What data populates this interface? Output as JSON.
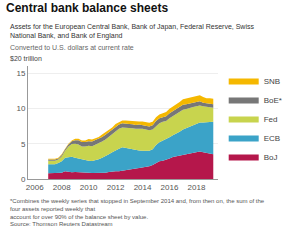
{
  "chart_data": {
    "type": "area",
    "stacked": true,
    "title": "Central bank balance sheets",
    "subtitle": "Assets for the European Central Bank, Bank of Japan, Federal Reserve, Swiss National Bank, and Bank of England",
    "annotations": [
      "Converted to U.S. dollars at current rate",
      "$20 trillion"
    ],
    "footnote": [
      "*Combines the weekly series that stopped in September 2014 and, from then on, the sum of the four assets reported weekly that",
      "account for over 90% of the balance sheet by value.",
      "Source: Thomson Reuters Datastream"
    ],
    "x": [
      2007.0,
      2007.25,
      2007.5,
      2007.75,
      2008.0,
      2008.25,
      2008.5,
      2008.75,
      2009.0,
      2009.25,
      2009.5,
      2009.75,
      2010.0,
      2010.25,
      2010.5,
      2010.75,
      2011.0,
      2011.25,
      2011.5,
      2011.75,
      2012.0,
      2012.25,
      2012.5,
      2012.75,
      2013.0,
      2013.25,
      2013.5,
      2013.75,
      2014.0,
      2014.25,
      2014.5,
      2014.75,
      2015.0,
      2015.25,
      2015.5,
      2015.75,
      2016.0,
      2016.25,
      2016.5,
      2016.75,
      2017.0,
      2017.25,
      2017.5,
      2017.75,
      2018.0,
      2018.25,
      2018.5,
      2018.75,
      2019.0,
      2019.25
    ],
    "series": [
      {
        "name": "BoJ",
        "color": "#b5174b",
        "values": [
          0.8,
          0.8,
          0.8,
          0.85,
          0.9,
          1.1,
          1.0,
          0.95,
          1.0,
          1.0,
          0.9,
          0.9,
          0.9,
          0.85,
          0.85,
          0.9,
          0.9,
          0.9,
          1.0,
          1.1,
          1.1,
          1.1,
          1.2,
          1.3,
          1.35,
          1.4,
          1.5,
          1.55,
          1.6,
          1.7,
          1.8,
          2.0,
          2.3,
          2.5,
          2.6,
          2.7,
          2.9,
          3.1,
          3.2,
          3.4,
          3.5,
          3.6,
          3.7,
          3.8,
          3.8,
          3.9,
          3.8,
          3.7,
          3.6,
          3.5
        ]
      },
      {
        "name": "ECB",
        "color": "#3ba3c8",
        "values": [
          1.3,
          1.3,
          1.3,
          1.4,
          1.6,
          1.9,
          2.1,
          2.2,
          2.0,
          1.9,
          1.8,
          1.7,
          1.7,
          1.7,
          1.8,
          1.9,
          2.1,
          2.3,
          2.5,
          2.7,
          3.0,
          3.2,
          3.3,
          3.1,
          2.9,
          2.8,
          2.6,
          2.5,
          2.4,
          2.3,
          2.2,
          2.2,
          2.5,
          2.7,
          2.8,
          2.9,
          3.0,
          3.1,
          3.2,
          3.3,
          3.5,
          3.6,
          3.7,
          3.8,
          4.0,
          4.1,
          4.2,
          4.3,
          4.5,
          4.6
        ]
      },
      {
        "name": "Fed",
        "color": "#c8d44e",
        "values": [
          0.5,
          0.5,
          0.5,
          0.5,
          0.7,
          1.0,
          1.5,
          1.8,
          2.0,
          2.0,
          1.9,
          2.0,
          2.1,
          2.1,
          2.2,
          2.2,
          2.3,
          2.4,
          2.5,
          2.6,
          2.7,
          2.8,
          2.8,
          2.9,
          3.0,
          3.0,
          3.0,
          3.1,
          3.1,
          3.0,
          2.9,
          2.8,
          2.7,
          2.7,
          2.7,
          2.6,
          2.7,
          2.7,
          2.8,
          2.8,
          2.8,
          2.7,
          2.7,
          2.6,
          2.5,
          2.4,
          2.3,
          2.2,
          2.1,
          2.0
        ]
      },
      {
        "name": "BoE*",
        "color": "#777777",
        "values": [
          0.15,
          0.15,
          0.15,
          0.15,
          0.2,
          0.2,
          0.3,
          0.4,
          0.5,
          0.6,
          0.65,
          0.65,
          0.65,
          0.65,
          0.65,
          0.65,
          0.65,
          0.65,
          0.6,
          0.6,
          0.6,
          0.6,
          0.6,
          0.6,
          0.55,
          0.55,
          0.55,
          0.55,
          0.55,
          0.55,
          0.55,
          0.6,
          0.7,
          0.7,
          0.7,
          0.7,
          0.7,
          0.7,
          0.7,
          0.7,
          0.7,
          0.7,
          0.6,
          0.6,
          0.6,
          0.6,
          0.5,
          0.5,
          0.5,
          0.5
        ]
      },
      {
        "name": "SNB",
        "color": "#f5b800",
        "values": [
          0.1,
          0.1,
          0.1,
          0.1,
          0.1,
          0.1,
          0.1,
          0.1,
          0.2,
          0.2,
          0.2,
          0.2,
          0.3,
          0.3,
          0.3,
          0.3,
          0.35,
          0.35,
          0.3,
          0.3,
          0.4,
          0.4,
          0.4,
          0.4,
          0.45,
          0.45,
          0.45,
          0.45,
          0.5,
          0.5,
          0.5,
          0.5,
          0.55,
          0.55,
          0.55,
          0.6,
          0.65,
          0.65,
          0.65,
          0.7,
          0.8,
          0.8,
          0.85,
          0.85,
          0.85,
          0.85,
          0.8,
          0.75,
          0.75,
          0.75
        ]
      }
    ],
    "xlim": [
      2005.5,
      2019.6
    ],
    "xticks": [
      2006,
      2008,
      2010,
      2012,
      2014,
      2016,
      2018
    ],
    "ylim": [
      0,
      16
    ],
    "yticks": [
      0,
      5,
      10,
      15
    ],
    "grid": true,
    "legend": "right"
  }
}
